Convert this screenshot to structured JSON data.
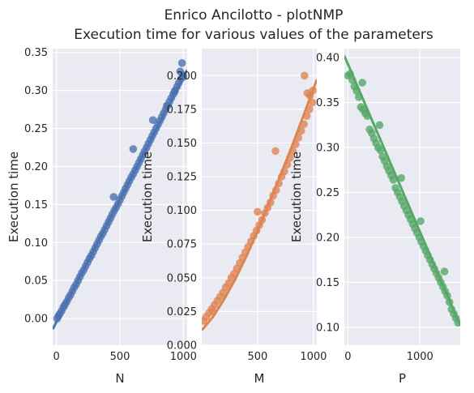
{
  "figure": {
    "title_line1": "Enrico Ancilotto - plotNMP",
    "title_line2": "Execution time for various values of the parameters"
  },
  "chart_data": [
    {
      "type": "scatter",
      "regression_line": true,
      "color": "#4c72b0",
      "xlabel": "N",
      "ylabel": "Execution time",
      "xlim": [
        -30,
        1030
      ],
      "ylim": [
        -0.035,
        0.355
      ],
      "xticks": [
        0,
        500,
        1000
      ],
      "xtick_labels": [
        "0",
        "500",
        "1000"
      ],
      "yticks": [
        0.0,
        0.05,
        0.1,
        0.15,
        0.2,
        0.25,
        0.3,
        0.35
      ],
      "ytick_labels": [
        "0.00",
        "0.05",
        "0.10",
        "0.15",
        "0.20",
        "0.25",
        "0.30",
        "0.35"
      ],
      "line": {
        "x": [
          -30,
          1030
        ],
        "y": [
          -0.014,
          0.327
        ]
      },
      "points": {
        "x": [
          5,
          15,
          25,
          40,
          55,
          65,
          80,
          95,
          110,
          125,
          140,
          155,
          170,
          185,
          200,
          215,
          230,
          245,
          260,
          275,
          290,
          305,
          320,
          335,
          350,
          365,
          380,
          395,
          410,
          425,
          440,
          455,
          470,
          485,
          500,
          515,
          530,
          545,
          560,
          575,
          590,
          605,
          620,
          635,
          650,
          665,
          680,
          695,
          710,
          725,
          740,
          755,
          770,
          785,
          800,
          815,
          830,
          845,
          860,
          875,
          890,
          905,
          920,
          935,
          950,
          965,
          980,
          995,
          605,
          450,
          760,
          990,
          870,
          930,
          975,
          1000
        ],
        "y": [
          0.0,
          0.003,
          0.006,
          0.01,
          0.015,
          0.018,
          0.022,
          0.027,
          0.031,
          0.036,
          0.041,
          0.045,
          0.05,
          0.055,
          0.06,
          0.064,
          0.069,
          0.074,
          0.079,
          0.083,
          0.088,
          0.093,
          0.098,
          0.103,
          0.108,
          0.112,
          0.117,
          0.122,
          0.127,
          0.132,
          0.137,
          0.142,
          0.146,
          0.151,
          0.156,
          0.161,
          0.166,
          0.171,
          0.176,
          0.181,
          0.186,
          0.19,
          0.195,
          0.2,
          0.205,
          0.21,
          0.215,
          0.22,
          0.225,
          0.23,
          0.235,
          0.24,
          0.245,
          0.25,
          0.255,
          0.26,
          0.265,
          0.27,
          0.275,
          0.28,
          0.285,
          0.29,
          0.295,
          0.3,
          0.305,
          0.31,
          0.315,
          0.32,
          0.223,
          0.16,
          0.261,
          0.336,
          0.28,
          0.298,
          0.325,
          0.318
        ]
      }
    },
    {
      "type": "scatter",
      "regression_line": true,
      "color": "#dd8452",
      "xlabel": "M",
      "ylabel": "Execution time",
      "xlim": [
        0,
        1030
      ],
      "ylim": [
        0.0,
        0.22
      ],
      "xticks": [
        500,
        1000
      ],
      "xtick_labels": [
        "500",
        "1000"
      ],
      "yticks": [
        0.0,
        0.025,
        0.05,
        0.075,
        0.1,
        0.125,
        0.15,
        0.175,
        0.2
      ],
      "ytick_labels": [
        "0.000",
        "0.025",
        "0.050",
        "0.075",
        "0.100",
        "0.125",
        "0.150",
        "0.175",
        "0.200"
      ],
      "line": {
        "x": [
          0,
          100,
          200,
          300,
          400,
          500,
          600,
          700,
          800,
          900,
          1030
        ],
        "y": [
          0.011,
          0.021,
          0.034,
          0.049,
          0.066,
          0.085,
          0.105,
          0.125,
          0.146,
          0.168,
          0.197
        ]
      },
      "points": {
        "x": [
          15,
          40,
          65,
          90,
          115,
          140,
          165,
          190,
          215,
          240,
          265,
          290,
          315,
          340,
          365,
          390,
          415,
          440,
          465,
          490,
          515,
          540,
          565,
          590,
          615,
          640,
          665,
          690,
          715,
          740,
          765,
          790,
          815,
          840,
          865,
          890,
          915,
          940,
          965,
          990,
          660,
          920,
          945,
          970,
          995,
          100,
          500
        ],
        "y": [
          0.018,
          0.021,
          0.024,
          0.027,
          0.03,
          0.033,
          0.036,
          0.039,
          0.043,
          0.046,
          0.05,
          0.053,
          0.057,
          0.061,
          0.065,
          0.069,
          0.073,
          0.077,
          0.081,
          0.085,
          0.089,
          0.093,
          0.098,
          0.102,
          0.106,
          0.111,
          0.115,
          0.12,
          0.125,
          0.129,
          0.134,
          0.139,
          0.144,
          0.149,
          0.154,
          0.159,
          0.164,
          0.17,
          0.175,
          0.18,
          0.144,
          0.2,
          0.187,
          0.185,
          0.189,
          0.025,
          0.099
        ]
      }
    },
    {
      "type": "scatter",
      "regression_line": true,
      "color": "#55a868",
      "xlabel": "P",
      "ylabel": "Execution time",
      "xlim": [
        -50,
        1560
      ],
      "ylim": [
        0.08,
        0.41
      ],
      "xticks": [
        0,
        1000
      ],
      "xtick_labels": [
        "0",
        "1000"
      ],
      "yticks": [
        0.1,
        0.15,
        0.2,
        0.25,
        0.3,
        0.35,
        0.4
      ],
      "ytick_labels": [
        "0.10",
        "0.15",
        "0.20",
        "0.25",
        "0.30",
        "0.35",
        "0.40"
      ],
      "line": {
        "x": [
          -50,
          1560
        ],
        "y": [
          0.402,
          0.102
        ]
      },
      "points": {
        "x": [
          0,
          30,
          60,
          90,
          120,
          150,
          180,
          210,
          240,
          270,
          300,
          330,
          360,
          390,
          420,
          450,
          480,
          510,
          540,
          570,
          600,
          630,
          660,
          690,
          720,
          750,
          780,
          810,
          840,
          870,
          900,
          930,
          960,
          990,
          1020,
          1050,
          1080,
          1110,
          1140,
          1170,
          1200,
          1230,
          1260,
          1290,
          1320,
          1350,
          1380,
          1410,
          1440,
          1470,
          1500,
          1530,
          200,
          440,
          740,
          1010,
          1340
        ],
        "y": [
          0.38,
          0.382,
          0.375,
          0.368,
          0.363,
          0.356,
          0.345,
          0.342,
          0.338,
          0.335,
          0.32,
          0.316,
          0.31,
          0.305,
          0.3,
          0.297,
          0.29,
          0.285,
          0.279,
          0.274,
          0.269,
          0.264,
          0.255,
          0.25,
          0.245,
          0.24,
          0.235,
          0.23,
          0.225,
          0.22,
          0.215,
          0.21,
          0.205,
          0.2,
          0.195,
          0.19,
          0.185,
          0.18,
          0.175,
          0.17,
          0.165,
          0.16,
          0.155,
          0.15,
          0.145,
          0.14,
          0.135,
          0.128,
          0.12,
          0.115,
          0.11,
          0.105,
          0.372,
          0.325,
          0.266,
          0.218,
          0.162
        ]
      }
    }
  ]
}
